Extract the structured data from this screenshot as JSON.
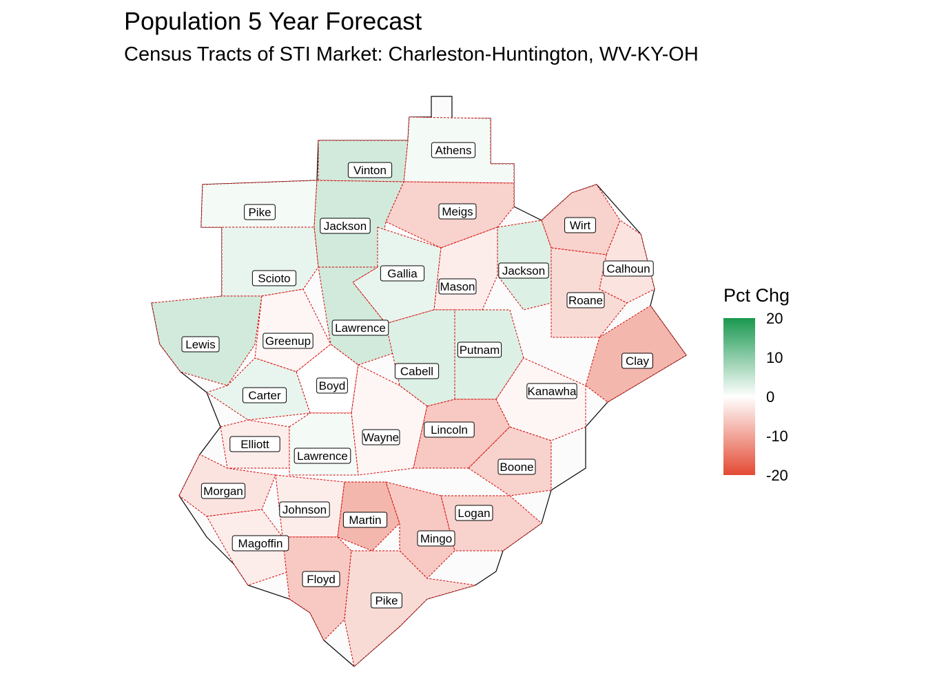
{
  "title": "Population 5 Year Forecast",
  "subtitle": "Census Tracts of STI Market: Charleston-Huntington, WV-KY-OH",
  "legend": {
    "title": "Pct Chg",
    "ticks": [
      "20",
      "10",
      "0",
      "-10",
      "-20"
    ],
    "range": [
      -20,
      20
    ],
    "colors": {
      "high": "#1a9850",
      "mid": "#ffffff",
      "low": "#e34a33"
    }
  },
  "counties": [
    {
      "name": "Athens",
      "value": 1
    },
    {
      "name": "Vinton",
      "value": 4
    },
    {
      "name": "Meigs",
      "value": -5
    },
    {
      "name": "Pike",
      "value": 1
    },
    {
      "name": "Jackson",
      "value": 4
    },
    {
      "name": "Wirt",
      "value": -5
    },
    {
      "name": "Gallia",
      "value": 2
    },
    {
      "name": "Jackson",
      "value": 3
    },
    {
      "name": "Calhoun",
      "value": -3
    },
    {
      "name": "Scioto",
      "value": 2
    },
    {
      "name": "Mason",
      "value": -2
    },
    {
      "name": "Roane",
      "value": -4
    },
    {
      "name": "Lawrence",
      "value": 4
    },
    {
      "name": "Lewis",
      "value": 4
    },
    {
      "name": "Greenup",
      "value": -1
    },
    {
      "name": "Putnam",
      "value": 3
    },
    {
      "name": "Clay",
      "value": -8
    },
    {
      "name": "Cabell",
      "value": 3
    },
    {
      "name": "Boyd",
      "value": 0
    },
    {
      "name": "Carter",
      "value": 2
    },
    {
      "name": "Kanawha",
      "value": -1
    },
    {
      "name": "Wayne",
      "value": -1
    },
    {
      "name": "Lincoln",
      "value": -6
    },
    {
      "name": "Elliott",
      "value": -2
    },
    {
      "name": "Lawrence",
      "value": 1
    },
    {
      "name": "Boone",
      "value": -5
    },
    {
      "name": "Morgan",
      "value": -3
    },
    {
      "name": "Johnson",
      "value": -2
    },
    {
      "name": "Martin",
      "value": -8
    },
    {
      "name": "Logan",
      "value": -5
    },
    {
      "name": "Mingo",
      "value": -6
    },
    {
      "name": "Magoffin",
      "value": -2
    },
    {
      "name": "Floyd",
      "value": -6
    },
    {
      "name": "Pike",
      "value": -4
    }
  ]
}
